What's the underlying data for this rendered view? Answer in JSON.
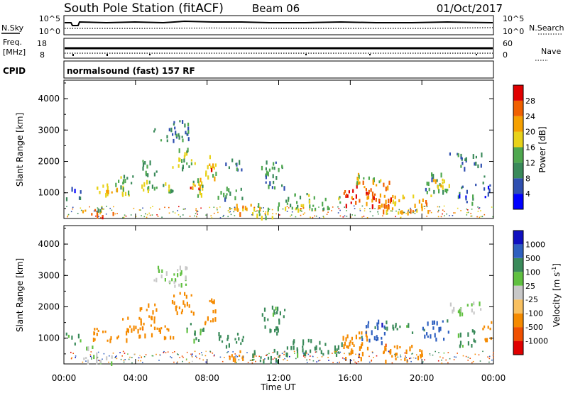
{
  "header": {
    "station": "South Pole Station (fitACF)",
    "beam": "Beam 06",
    "date": "01/Oct/2017"
  },
  "noise_panel": {
    "left_label": "N.Sky",
    "left_ticks": [
      "10^5",
      "10^0"
    ],
    "right_label": "N.Search",
    "right_ticks": [
      "10^5",
      "10^0"
    ]
  },
  "freq_panel": {
    "left_label_1": "Freq.",
    "left_label_2": "[MHz]",
    "left_ticks": [
      "18",
      "8"
    ],
    "right_label": "Nave",
    "right_ticks": [
      "60",
      "0"
    ]
  },
  "cpid": {
    "label": "CPID",
    "value": "normalsound (fast) 157 RF"
  },
  "x_axis": {
    "title": "Time UT",
    "ticks": [
      "00:00",
      "04:00",
      "08:00",
      "12:00",
      "16:00",
      "20:00",
      "00:00"
    ]
  },
  "colors": {
    "power": [
      "#0000ff",
      "#2f4fb0",
      "#3a8a5a",
      "#4fa84f",
      "#e8d21a",
      "#f5a000",
      "#f06000",
      "#e00000"
    ],
    "velocity": [
      "#e00000",
      "#f05000",
      "#f58a00",
      "#f8c060",
      "#c8c8c8",
      "#60c040",
      "#3a8a5a",
      "#2f60c0",
      "#1010c0"
    ]
  },
  "chart_data": [
    {
      "type": "heatmap",
      "panel": "power",
      "ylabel": "Slant Range [km]",
      "ylim": [
        180,
        4590
      ],
      "yticks": [
        1000,
        2000,
        3000,
        4000
      ],
      "xlim_hours": [
        0,
        24
      ],
      "colorbar": {
        "label": "Power [dB]",
        "ticks": [
          "4",
          "8",
          "12",
          "16",
          "20",
          "24",
          "28"
        ],
        "range": [
          0,
          32
        ]
      },
      "blobs": [
        {
          "t0": 0.1,
          "t1": 0.9,
          "r0": 850,
          "r1": 1200,
          "value": 8
        },
        {
          "t0": 1.0,
          "t1": 2.8,
          "r0": 250,
          "r1": 500,
          "value": 24
        },
        {
          "t0": 1.2,
          "t1": 2.2,
          "r0": 450,
          "r1": 600,
          "value": 12
        },
        {
          "t0": 1.6,
          "t1": 3.6,
          "r0": 950,
          "r1": 1350,
          "value": 16
        },
        {
          "t0": 2.3,
          "t1": 3.4,
          "r0": 1000,
          "r1": 1250,
          "value": 22
        },
        {
          "t0": 3.0,
          "t1": 4.2,
          "r0": 1300,
          "r1": 1650,
          "value": 12
        },
        {
          "t0": 4.0,
          "t1": 6.2,
          "r0": 1050,
          "r1": 1450,
          "value": 14
        },
        {
          "t0": 4.2,
          "t1": 5.2,
          "r0": 1600,
          "r1": 2100,
          "value": 12
        },
        {
          "t0": 5.0,
          "t1": 7.0,
          "r0": 2700,
          "r1": 3350,
          "value": 8
        },
        {
          "t0": 6.0,
          "t1": 7.3,
          "r0": 1800,
          "r1": 2450,
          "value": 14
        },
        {
          "t0": 6.8,
          "t1": 7.8,
          "r0": 900,
          "r1": 1500,
          "value": 16
        },
        {
          "t0": 7.0,
          "t1": 7.8,
          "r0": 1050,
          "r1": 1300,
          "value": 26
        },
        {
          "t0": 7.8,
          "t1": 8.5,
          "r0": 1500,
          "r1": 2300,
          "value": 18
        },
        {
          "t0": 8.0,
          "t1": 8.4,
          "r0": 1650,
          "r1": 2000,
          "value": 26
        },
        {
          "t0": 8.5,
          "t1": 10.0,
          "r0": 800,
          "r1": 1200,
          "value": 12
        },
        {
          "t0": 9.0,
          "t1": 10.0,
          "r0": 1700,
          "r1": 2100,
          "value": 10
        },
        {
          "t0": 9.2,
          "t1": 10.8,
          "r0": 350,
          "r1": 650,
          "value": 22
        },
        {
          "t0": 10.5,
          "t1": 12.0,
          "r0": 250,
          "r1": 700,
          "value": 16
        },
        {
          "t0": 11.0,
          "t1": 12.3,
          "r0": 1200,
          "r1": 2050,
          "value": 10
        },
        {
          "t0": 12.3,
          "t1": 15.5,
          "r0": 500,
          "r1": 1000,
          "value": 14
        },
        {
          "t0": 15.5,
          "t1": 18.3,
          "r0": 600,
          "r1": 1450,
          "value": 26
        },
        {
          "t0": 16.2,
          "t1": 17.8,
          "r0": 1300,
          "r1": 1700,
          "value": 18
        },
        {
          "t0": 17.8,
          "t1": 20.5,
          "r0": 400,
          "r1": 950,
          "value": 22
        },
        {
          "t0": 20.0,
          "t1": 21.5,
          "r0": 1050,
          "r1": 1650,
          "value": 12
        },
        {
          "t0": 20.5,
          "t1": 21.5,
          "r0": 1200,
          "r1": 1500,
          "value": 22
        },
        {
          "t0": 21.5,
          "t1": 23.3,
          "r0": 1800,
          "r1": 2300,
          "value": 8
        },
        {
          "t0": 22.0,
          "t1": 23.0,
          "r0": 700,
          "r1": 1300,
          "value": 8
        },
        {
          "t0": 23.3,
          "t1": 23.9,
          "r0": 900,
          "r1": 1600,
          "value": 8
        }
      ]
    },
    {
      "type": "heatmap",
      "panel": "velocity",
      "ylabel": "Slant Range [km]",
      "ylim": [
        180,
        4590
      ],
      "yticks": [
        1000,
        2000,
        3000,
        4000
      ],
      "xlim_hours": [
        0,
        24
      ],
      "colorbar": {
        "label": "Velocity [m s^-1]",
        "ticks": [
          "-1000",
          "-500",
          "-100",
          "-25",
          "25",
          "100",
          "500",
          "1000"
        ],
        "range": [
          -1200,
          1200
        ]
      },
      "blobs": [
        {
          "t0": 0.1,
          "t1": 0.9,
          "r0": 850,
          "r1": 1200,
          "value": 100
        },
        {
          "t0": 1.0,
          "t1": 2.8,
          "r0": 250,
          "r1": 550,
          "value": 25
        },
        {
          "t0": 1.2,
          "t1": 2.0,
          "r0": 650,
          "r1": 850,
          "value": 25
        },
        {
          "t0": 1.6,
          "t1": 3.6,
          "r0": 950,
          "r1": 1350,
          "value": -300
        },
        {
          "t0": 3.0,
          "t1": 4.3,
          "r0": 1300,
          "r1": 1700,
          "value": -300
        },
        {
          "t0": 4.0,
          "t1": 6.2,
          "r0": 1050,
          "r1": 1500,
          "value": -400
        },
        {
          "t0": 4.2,
          "t1": 5.2,
          "r0": 1600,
          "r1": 2150,
          "value": -300
        },
        {
          "t0": 5.0,
          "t1": 7.0,
          "r0": 2700,
          "r1": 3350,
          "value": 25
        },
        {
          "t0": 6.0,
          "t1": 7.3,
          "r0": 1800,
          "r1": 2500,
          "value": -300
        },
        {
          "t0": 6.8,
          "t1": 7.8,
          "r0": 900,
          "r1": 1500,
          "value": 100
        },
        {
          "t0": 7.8,
          "t1": 8.5,
          "r0": 1500,
          "r1": 2300,
          "value": -300
        },
        {
          "t0": 8.5,
          "t1": 10.0,
          "r0": 750,
          "r1": 1200,
          "value": 200
        },
        {
          "t0": 9.2,
          "t1": 10.8,
          "r0": 350,
          "r1": 650,
          "value": -300
        },
        {
          "t0": 10.5,
          "t1": 12.0,
          "r0": 250,
          "r1": 700,
          "value": 200
        },
        {
          "t0": 11.0,
          "t1": 12.3,
          "r0": 1200,
          "r1": 2050,
          "value": 200
        },
        {
          "t0": 12.3,
          "t1": 15.5,
          "r0": 500,
          "r1": 1000,
          "value": 200
        },
        {
          "t0": 15.5,
          "t1": 17.0,
          "r0": 350,
          "r1": 1300,
          "value": -300
        },
        {
          "t0": 16.5,
          "t1": 18.0,
          "r0": 900,
          "r1": 1600,
          "value": 700
        },
        {
          "t0": 17.8,
          "t1": 20.0,
          "r0": 300,
          "r1": 850,
          "value": -400
        },
        {
          "t0": 18.0,
          "t1": 19.5,
          "r0": 1200,
          "r1": 1500,
          "value": 200
        },
        {
          "t0": 20.0,
          "t1": 21.5,
          "r0": 1000,
          "r1": 1600,
          "value": 700
        },
        {
          "t0": 21.5,
          "t1": 23.3,
          "r0": 1800,
          "r1": 2200,
          "value": 25
        },
        {
          "t0": 22.0,
          "t1": 23.0,
          "r0": 700,
          "r1": 1300,
          "value": 200
        },
        {
          "t0": 23.3,
          "t1": 23.9,
          "r0": 900,
          "r1": 1600,
          "value": -300
        }
      ]
    }
  ]
}
